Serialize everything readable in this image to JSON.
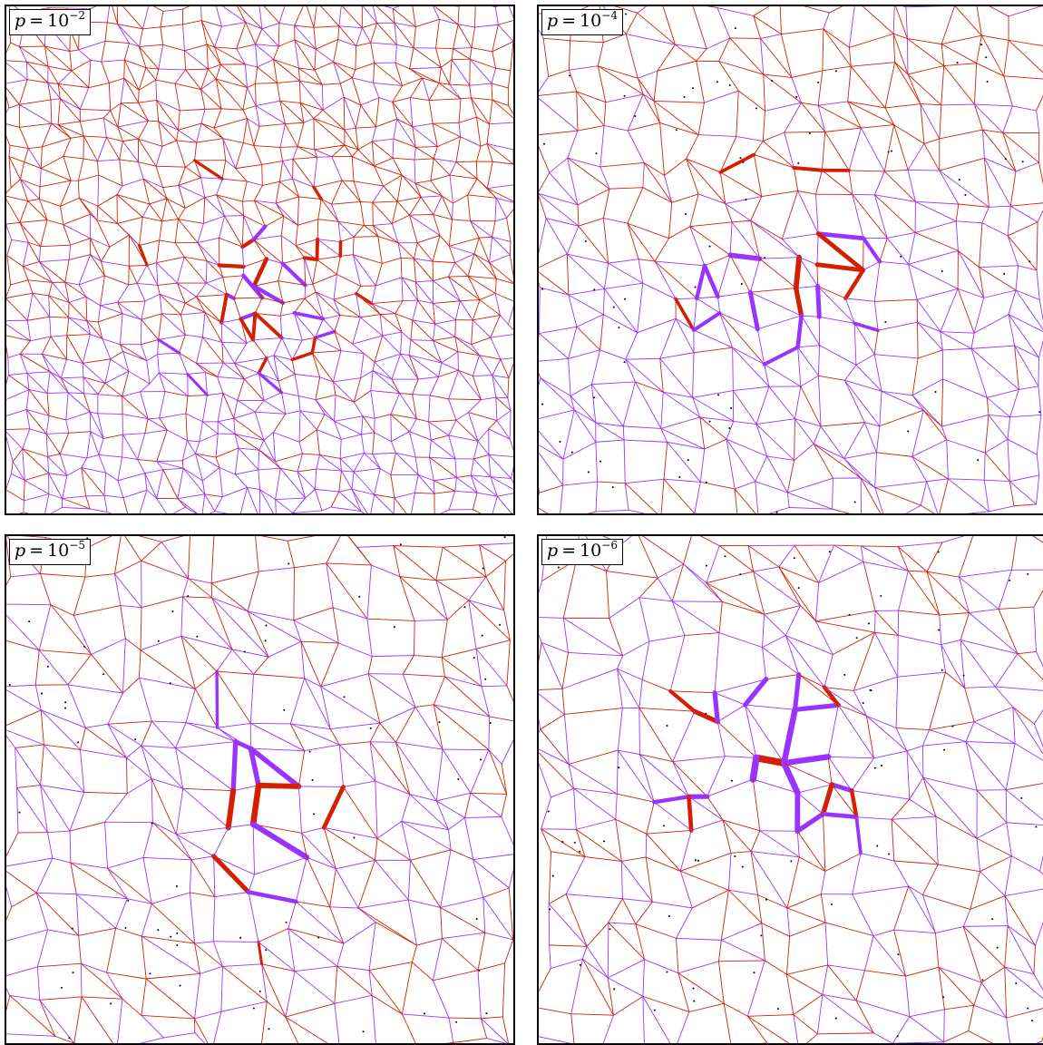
{
  "panels": [
    {
      "label": {
        "var": "p",
        "eq": "=",
        "base": "10",
        "exp": "−2"
      },
      "network": {
        "density": 1.0,
        "core_strength": 0.35,
        "core_center": [
          0.5,
          0.52
        ]
      }
    },
    {
      "label": {
        "var": "p",
        "eq": "=",
        "base": "10",
        "exp": "−4"
      },
      "network": {
        "density": 0.62,
        "core_strength": 0.7,
        "core_center": [
          0.48,
          0.5
        ]
      }
    },
    {
      "label": {
        "var": "p",
        "eq": "=",
        "base": "10",
        "exp": "−5"
      },
      "network": {
        "density": 0.55,
        "core_strength": 0.8,
        "core_center": [
          0.5,
          0.55
        ]
      }
    },
    {
      "label": {
        "var": "p",
        "eq": "=",
        "base": "10",
        "exp": "−6"
      },
      "network": {
        "density": 0.52,
        "core_strength": 1.0,
        "core_center": [
          0.45,
          0.45
        ]
      }
    }
  ],
  "colors": {
    "edge_red": "#d42000",
    "edge_purple": "#9933ff",
    "node_dot": "#000000",
    "border": "#000000"
  }
}
